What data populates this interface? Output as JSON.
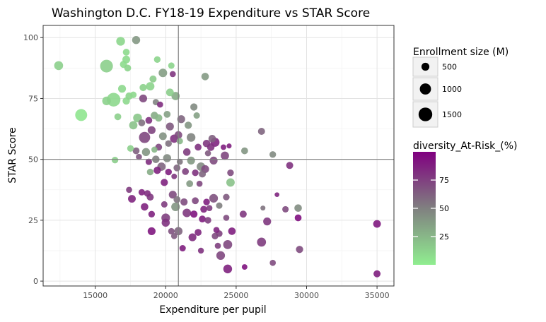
{
  "chart_data": {
    "type": "scatter",
    "title": "Washington D.C. FY18-19 Expenditure vs STAR Score",
    "xlabel": "Expenditure per pupil",
    "ylabel": "STAR Score",
    "xlim": [
      11300,
      36200
    ],
    "ylim": [
      -2,
      105
    ],
    "x_ticks": [
      15000,
      20000,
      25000,
      30000,
      35000
    ],
    "x_tick_labels": [
      "15000",
      "20000",
      "25000",
      "30000",
      "35000"
    ],
    "y_ticks": [
      0,
      25,
      50,
      75,
      100
    ],
    "y_tick_labels": [
      "0",
      "25",
      "50",
      "75",
      "100"
    ],
    "reference_lines": {
      "x": 20900,
      "y": 50
    },
    "grid": true,
    "size_legend": {
      "title": "Enrollment size (M)",
      "values": [
        500,
        1000,
        1500
      ],
      "labels": [
        "500",
        "1000",
        "1500"
      ]
    },
    "color_legend": {
      "title": "diversity_At-Risk_(%)",
      "range": [
        0,
        100
      ],
      "ticks": [
        25,
        50,
        75
      ],
      "labels": [
        "25",
        "50",
        "75"
      ],
      "low_color": "#90ee90",
      "mid_color": "#808080",
      "high_color": "#800080"
    },
    "points": [
      [
        12400,
        88.5,
        14,
        640
      ],
      [
        14000,
        68.2,
        4,
        1150
      ],
      [
        15800,
        88.3,
        14,
        1300
      ],
      [
        16300,
        74.5,
        10,
        1500
      ],
      [
        15800,
        74,
        13,
        600
      ],
      [
        16400,
        49.7,
        15,
        350
      ],
      [
        16600,
        67.5,
        14,
        380
      ],
      [
        16800,
        98.5,
        11,
        620
      ],
      [
        16900,
        79,
        10,
        500
      ],
      [
        17000,
        89,
        8,
        400
      ],
      [
        17200,
        94,
        9,
        380
      ],
      [
        17200,
        91,
        9,
        480
      ],
      [
        17300,
        87.5,
        12,
        380
      ],
      [
        17200,
        74,
        10,
        430
      ],
      [
        17400,
        76,
        12,
        420
      ],
      [
        17500,
        54.5,
        14,
        350
      ],
      [
        17700,
        64,
        20,
        550
      ],
      [
        17700,
        76.5,
        10,
        350
      ],
      [
        17900,
        99,
        39,
        520
      ],
      [
        17600,
        33.8,
        85,
        480
      ],
      [
        17400,
        37.5,
        76,
        300
      ],
      [
        17900,
        53.5,
        62,
        380
      ],
      [
        18000,
        67,
        18,
        620
      ],
      [
        18100,
        51,
        66,
        300
      ],
      [
        18300,
        36.5,
        86,
        330
      ],
      [
        18400,
        75,
        71,
        500
      ],
      [
        18400,
        79.5,
        13,
        420
      ],
      [
        18300,
        65,
        56,
        380
      ],
      [
        18500,
        59,
        72,
        1000
      ],
      [
        18600,
        53,
        40,
        520
      ],
      [
        18500,
        30.5,
        86,
        450
      ],
      [
        18700,
        36,
        82,
        350
      ],
      [
        18800,
        49,
        82,
        330
      ],
      [
        18900,
        80,
        12,
        570
      ],
      [
        19000,
        62,
        73,
        500
      ],
      [
        18900,
        44.8,
        30,
        350
      ],
      [
        19000,
        27.5,
        86,
        350
      ],
      [
        19000,
        20.5,
        91,
        500
      ],
      [
        18900,
        34.5,
        78,
        400
      ],
      [
        18800,
        66,
        80,
        380
      ],
      [
        19100,
        83,
        16,
        400
      ],
      [
        19200,
        68,
        30,
        450
      ],
      [
        19200,
        54,
        25,
        300
      ],
      [
        19300,
        50,
        50,
        450
      ],
      [
        19300,
        73.5,
        48,
        320
      ],
      [
        19400,
        91,
        12,
        350
      ],
      [
        19400,
        45.5,
        86,
        430
      ],
      [
        19500,
        67,
        25,
        430
      ],
      [
        19600,
        72.5,
        82,
        300
      ],
      [
        19500,
        55,
        72,
        380
      ],
      [
        19700,
        47,
        60,
        550
      ],
      [
        19800,
        85.5,
        37,
        580
      ],
      [
        19800,
        59.5,
        42,
        480
      ],
      [
        19900,
        40.5,
        86,
        420
      ],
      [
        19900,
        31.5,
        76,
        330
      ],
      [
        20000,
        26,
        75,
        600
      ],
      [
        20000,
        24,
        80,
        530
      ],
      [
        20100,
        68.5,
        35,
        380
      ],
      [
        20100,
        50.5,
        45,
        520
      ],
      [
        20200,
        44.8,
        88,
        350
      ],
      [
        20200,
        56.5,
        56,
        350
      ],
      [
        20300,
        63.5,
        65,
        500
      ],
      [
        20300,
        77.5,
        15,
        470
      ],
      [
        20400,
        88.5,
        12,
        330
      ],
      [
        20400,
        20.5,
        68,
        330
      ],
      [
        20500,
        35.5,
        70,
        500
      ],
      [
        20500,
        85,
        79,
        300
      ],
      [
        20600,
        43,
        78,
        250
      ],
      [
        20600,
        18.5,
        64,
        300
      ],
      [
        20600,
        58.5,
        80,
        550
      ],
      [
        20700,
        76,
        30,
        550
      ],
      [
        20700,
        30.5,
        40,
        600
      ],
      [
        20800,
        46.5,
        60,
        380
      ],
      [
        20800,
        33.5,
        55,
        380
      ],
      [
        20900,
        60,
        70,
        480
      ],
      [
        20900,
        20.5,
        60,
        550
      ],
      [
        21000,
        57.5,
        25,
        330
      ],
      [
        21000,
        49,
        54,
        300
      ],
      [
        21100,
        66.5,
        60,
        500
      ],
      [
        21200,
        13.5,
        88,
        330
      ],
      [
        21300,
        32.5,
        70,
        420
      ],
      [
        21400,
        45,
        74,
        380
      ],
      [
        21500,
        53,
        76,
        450
      ],
      [
        21500,
        28,
        78,
        580
      ],
      [
        21600,
        64,
        40,
        420
      ],
      [
        21700,
        40,
        38,
        380
      ],
      [
        21800,
        59,
        48,
        600
      ],
      [
        21800,
        49.5,
        38,
        500
      ],
      [
        21900,
        18,
        82,
        500
      ],
      [
        22000,
        71.5,
        45,
        420
      ],
      [
        22000,
        27.5,
        92,
        420
      ],
      [
        22100,
        44.5,
        80,
        350
      ],
      [
        22100,
        33,
        72,
        380
      ],
      [
        22200,
        68,
        35,
        330
      ],
      [
        22300,
        55,
        80,
        380
      ],
      [
        22300,
        20,
        84,
        380
      ],
      [
        22400,
        40,
        72,
        300
      ],
      [
        22500,
        47,
        45,
        580
      ],
      [
        22500,
        12.5,
        80,
        280
      ],
      [
        22600,
        25.5,
        88,
        380
      ],
      [
        22600,
        44,
        60,
        400
      ],
      [
        22700,
        29.5,
        85,
        380
      ],
      [
        22800,
        84,
        38,
        450
      ],
      [
        22800,
        46,
        70,
        500
      ],
      [
        22900,
        56.5,
        78,
        450
      ],
      [
        22900,
        32.5,
        88,
        350
      ],
      [
        23000,
        52.5,
        65,
        300
      ],
      [
        23000,
        25,
        75,
        350
      ],
      [
        23100,
        30,
        76,
        300
      ],
      [
        23200,
        55,
        80,
        450
      ],
      [
        23300,
        58.5,
        62,
        450
      ],
      [
        23400,
        49.5,
        70,
        500
      ],
      [
        23400,
        34,
        68,
        600
      ],
      [
        23500,
        57,
        85,
        650
      ],
      [
        23600,
        21,
        85,
        300
      ],
      [
        23500,
        18.5,
        70,
        350
      ],
      [
        23700,
        14.5,
        75,
        300
      ],
      [
        23800,
        31,
        50,
        330
      ],
      [
        23900,
        10.5,
        72,
        600
      ],
      [
        23800,
        19.5,
        74,
        350
      ],
      [
        24100,
        55,
        88,
        250
      ],
      [
        24200,
        51.5,
        72,
        550
      ],
      [
        24300,
        34.5,
        65,
        350
      ],
      [
        24300,
        26,
        70,
        300
      ],
      [
        24400,
        15,
        72,
        650
      ],
      [
        24400,
        5,
        86,
        620
      ],
      [
        24500,
        55.5,
        88,
        200
      ],
      [
        24600,
        44.5,
        70,
        350
      ],
      [
        24600,
        40.5,
        20,
        570
      ],
      [
        24700,
        20.5,
        88,
        450
      ],
      [
        25500,
        27.5,
        78,
        400
      ],
      [
        25600,
        53.5,
        40,
        380
      ],
      [
        25600,
        5.8,
        92,
        250
      ],
      [
        26800,
        61.5,
        60,
        400
      ],
      [
        26800,
        16,
        76,
        650
      ],
      [
        26900,
        30,
        55,
        200
      ],
      [
        27200,
        24.5,
        78,
        500
      ],
      [
        27600,
        52,
        45,
        350
      ],
      [
        27600,
        7.5,
        70,
        300
      ],
      [
        27900,
        35.5,
        85,
        180
      ],
      [
        28500,
        29.5,
        70,
        330
      ],
      [
        28800,
        47.5,
        80,
        400
      ],
      [
        29400,
        30,
        44,
        450
      ],
      [
        29400,
        26,
        94,
        380
      ],
      [
        29500,
        13,
        70,
        420
      ],
      [
        35000,
        23.5,
        90,
        480
      ],
      [
        35000,
        3,
        88,
        400
      ]
    ]
  }
}
